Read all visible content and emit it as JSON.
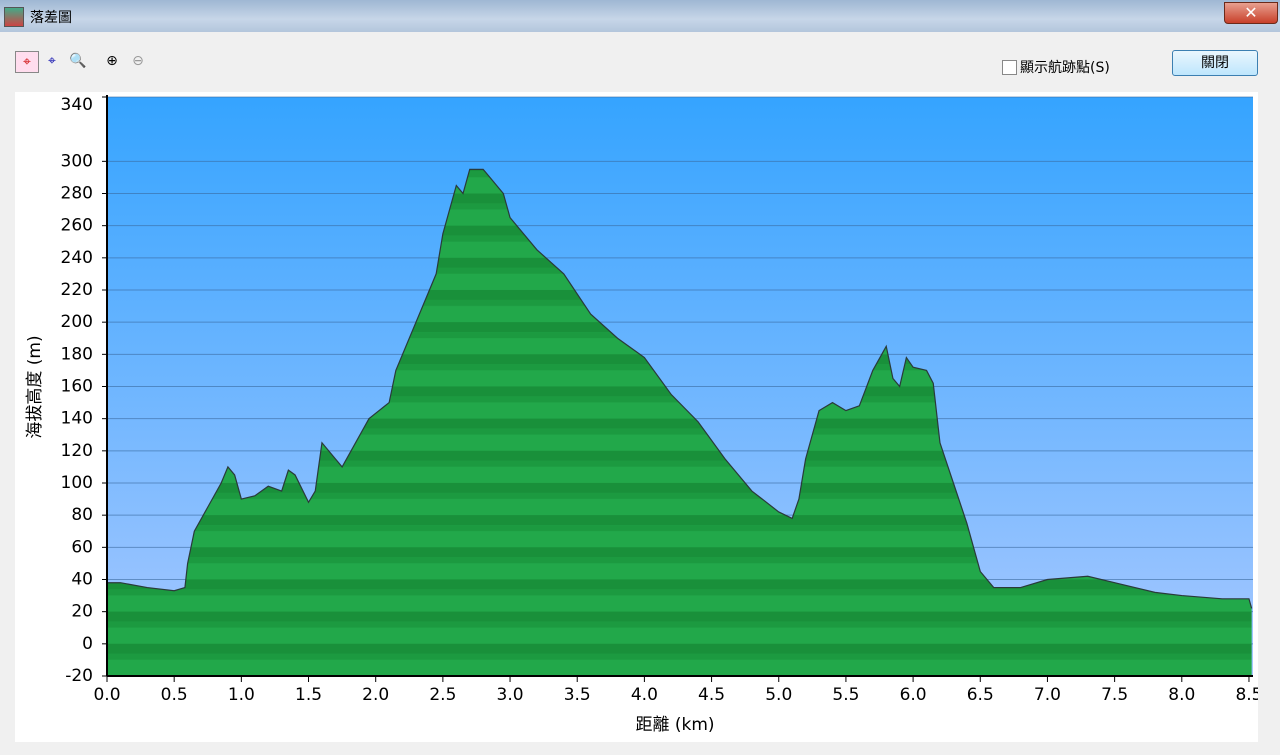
{
  "window": {
    "title": "落差圖"
  },
  "toolbar": {
    "checkbox_label": "顯示航跡點(S)",
    "close_button": "關閉"
  },
  "chart_data": {
    "type": "area",
    "x_label": "距離 (km)",
    "y_label": "海拔高度 (m)",
    "x": [
      0,
      0.1,
      0.3,
      0.5,
      0.58,
      0.6,
      0.65,
      0.75,
      0.85,
      0.9,
      0.95,
      1.0,
      1.1,
      1.2,
      1.3,
      1.35,
      1.4,
      1.5,
      1.55,
      1.6,
      1.7,
      1.75,
      1.85,
      1.95,
      2.1,
      2.15,
      2.25,
      2.35,
      2.45,
      2.5,
      2.6,
      2.65,
      2.7,
      2.8,
      2.85,
      2.95,
      3.0,
      3.2,
      3.4,
      3.6,
      3.8,
      4.0,
      4.2,
      4.4,
      4.6,
      4.8,
      5.0,
      5.1,
      5.15,
      5.2,
      5.3,
      5.4,
      5.5,
      5.6,
      5.7,
      5.8,
      5.85,
      5.9,
      5.95,
      6.0,
      6.1,
      6.15,
      6.2,
      6.3,
      6.4,
      6.5,
      6.6,
      6.8,
      7.0,
      7.3,
      7.5,
      7.8,
      8.0,
      8.3,
      8.5,
      8.52
    ],
    "values": [
      38,
      38,
      35,
      33,
      35,
      50,
      70,
      85,
      100,
      110,
      105,
      90,
      92,
      98,
      95,
      108,
      105,
      88,
      95,
      125,
      115,
      110,
      125,
      140,
      150,
      170,
      190,
      210,
      230,
      255,
      285,
      280,
      295,
      295,
      290,
      280,
      265,
      245,
      230,
      205,
      190,
      178,
      155,
      138,
      115,
      95,
      82,
      78,
      90,
      115,
      145,
      150,
      145,
      148,
      170,
      185,
      165,
      160,
      178,
      172,
      170,
      162,
      125,
      100,
      75,
      45,
      35,
      35,
      40,
      42,
      38,
      32,
      30,
      28,
      28,
      22
    ],
    "xlim": [
      0,
      8.53
    ],
    "ylim": [
      -20,
      340
    ],
    "xticks": [
      {
        "value": 0,
        "label": "0.0"
      },
      0.5,
      {
        "value": 1,
        "label": "1.0"
      },
      1.5,
      {
        "value": 2,
        "label": "2.0"
      },
      2.5,
      {
        "value": 3,
        "label": "3.0"
      },
      3.5,
      {
        "value": 4,
        "label": "4.0"
      },
      4.5,
      {
        "value": 5,
        "label": "5.0"
      },
      5.5,
      {
        "value": 6,
        "label": "6.0"
      },
      6.5,
      {
        "value": 7,
        "label": "7.0"
      },
      7.5,
      {
        "value": 8,
        "label": "8.0"
      },
      8.5
    ],
    "yticks": [
      -20,
      0,
      20,
      40,
      60,
      80,
      100,
      120,
      140,
      160,
      180,
      200,
      220,
      240,
      260,
      280,
      300,
      340
    ],
    "grid": true,
    "color": "#20a040"
  }
}
